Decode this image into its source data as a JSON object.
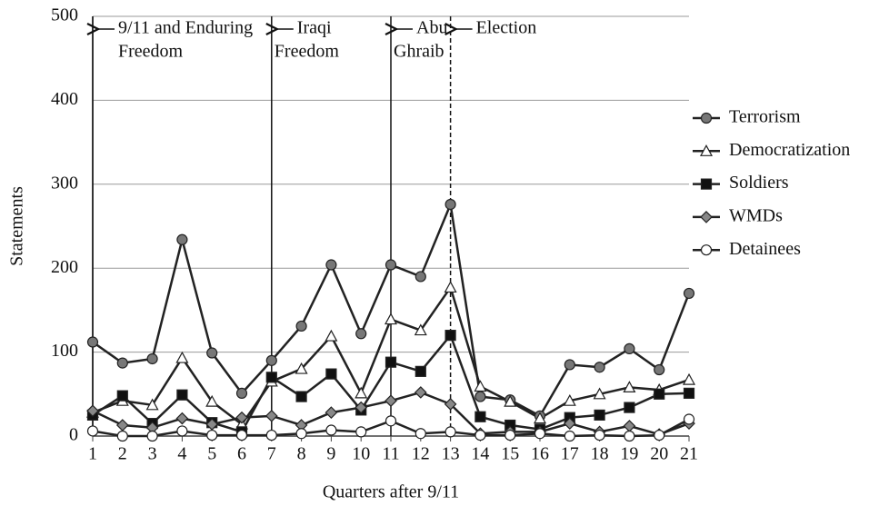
{
  "chart_data": {
    "type": "line",
    "x_label": "Quarters after 9/11",
    "y_label": "Statements",
    "x": [
      1,
      2,
      3,
      4,
      5,
      6,
      7,
      8,
      9,
      10,
      11,
      12,
      13,
      14,
      15,
      16,
      17,
      18,
      19,
      20,
      21
    ],
    "xlim": [
      1,
      21
    ],
    "xticks": [
      1,
      2,
      3,
      4,
      5,
      6,
      7,
      8,
      9,
      10,
      11,
      12,
      13,
      14,
      15,
      16,
      17,
      18,
      19,
      20,
      21
    ],
    "ylim": [
      0,
      500
    ],
    "yticks": [
      0,
      100,
      200,
      300,
      400,
      500
    ],
    "grid": true,
    "legend": "right",
    "line_color": "#222",
    "series": [
      {
        "name": "Terrorism",
        "marker": "circle",
        "color": "#777",
        "values": [
          112,
          87,
          92,
          234,
          99,
          51,
          90,
          131,
          204,
          122,
          204,
          190,
          276,
          47,
          43,
          24,
          85,
          82,
          104,
          79,
          170
        ]
      },
      {
        "name": "Democratization",
        "marker": "triangle",
        "color": "#fff",
        "values": [
          28,
          42,
          37,
          93,
          41,
          14,
          65,
          80,
          119,
          51,
          139,
          126,
          177,
          59,
          41,
          21,
          42,
          50,
          58,
          55,
          67
        ]
      },
      {
        "name": "Soldiers",
        "marker": "square",
        "color": "#111",
        "values": [
          25,
          48,
          15,
          49,
          16,
          5,
          70,
          47,
          74,
          31,
          88,
          77,
          120,
          23,
          13,
          8,
          22,
          25,
          34,
          50,
          51
        ]
      },
      {
        "name": "WMDs",
        "marker": "diamond",
        "color": "#888",
        "values": [
          30,
          13,
          10,
          21,
          14,
          22,
          24,
          13,
          28,
          34,
          42,
          52,
          38,
          3,
          5,
          5,
          15,
          5,
          12,
          2,
          15
        ]
      },
      {
        "name": "Detainees",
        "marker": "circle",
        "color": "#fff",
        "values": [
          6,
          0,
          0,
          6,
          1,
          1,
          1,
          3,
          7,
          5,
          18,
          3,
          5,
          1,
          1,
          3,
          0,
          1,
          0,
          1,
          20
        ]
      }
    ],
    "annotations": [
      {
        "x": 1,
        "style": "solid",
        "lines": [
          "9/11 and Enduring",
          "Freedom"
        ]
      },
      {
        "x": 7,
        "style": "solid",
        "lines": [
          "Iraqi",
          "Freedom"
        ]
      },
      {
        "x": 11,
        "style": "solid",
        "lines": [
          "Abu",
          "Ghraib"
        ]
      },
      {
        "x": 13,
        "style": "dashed",
        "lines": [
          "Election"
        ]
      }
    ]
  }
}
